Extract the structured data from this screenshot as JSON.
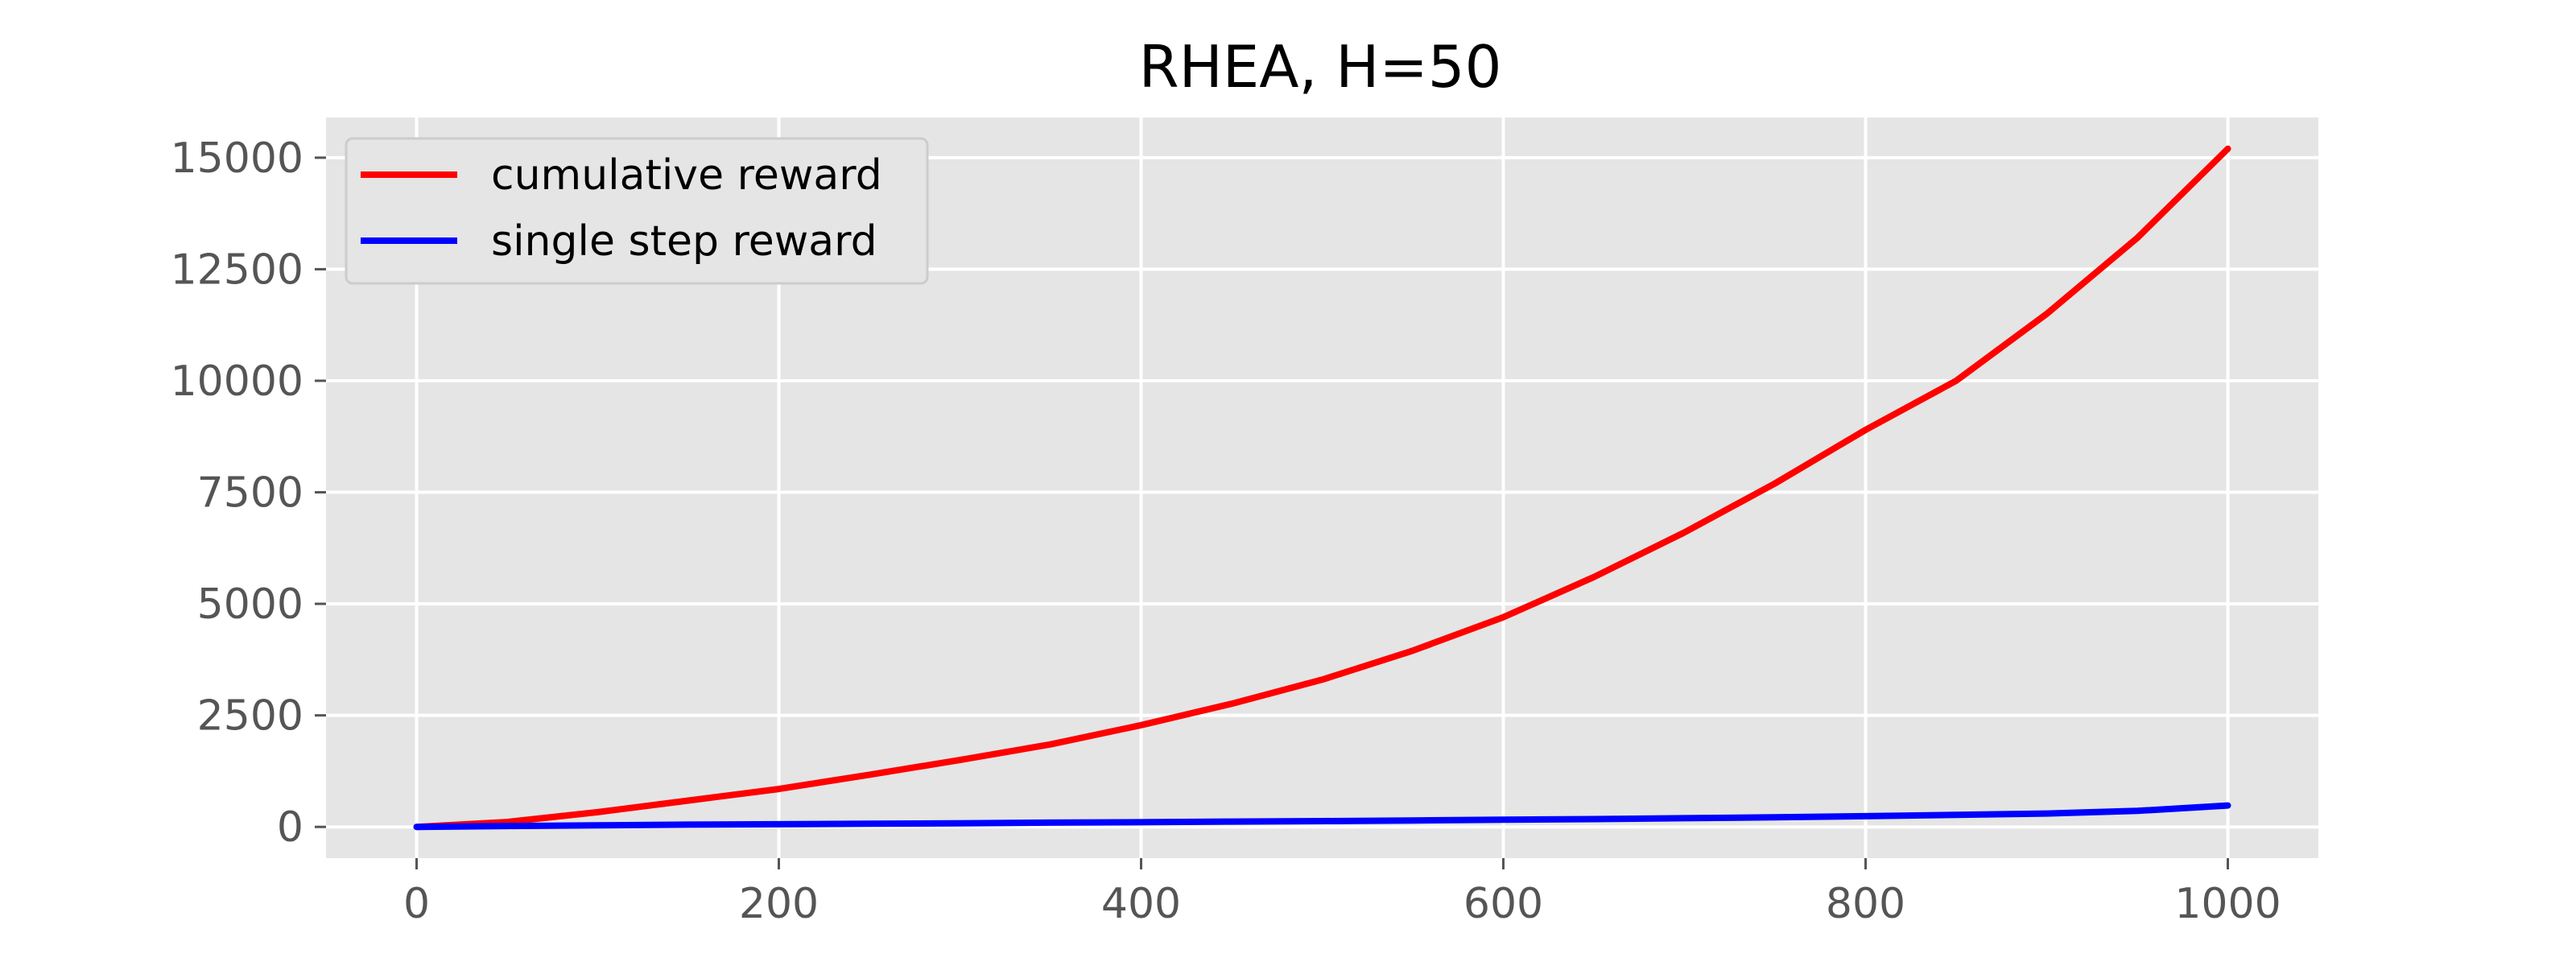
{
  "chart_data": {
    "type": "line",
    "title": "RHEA, H=50",
    "xlabel": "",
    "ylabel": "",
    "xlim": [
      -50,
      1050
    ],
    "ylim": [
      -700,
      15900
    ],
    "xticks": [
      0,
      200,
      400,
      600,
      800,
      1000
    ],
    "xtick_labels": [
      "0",
      "200",
      "400",
      "600",
      "800",
      "1000"
    ],
    "yticks": [
      0,
      2500,
      5000,
      7500,
      10000,
      12500,
      15000
    ],
    "ytick_labels": [
      "0",
      "2500",
      "5000",
      "7500",
      "10000",
      "12500",
      "15000"
    ],
    "grid": true,
    "legend_position": "top-left",
    "background_color": "#e5e5e5",
    "grid_color": "#ffffff",
    "series": [
      {
        "name": "cumulative reward",
        "color": "#ff0000",
        "x": [
          0,
          50,
          100,
          150,
          200,
          250,
          300,
          350,
          400,
          450,
          500,
          550,
          600,
          650,
          700,
          750,
          800,
          850,
          900,
          950,
          1000
        ],
        "values": [
          0,
          110,
          330,
          590,
          850,
          1170,
          1500,
          1850,
          2280,
          2760,
          3300,
          3950,
          4700,
          5600,
          6600,
          7700,
          8900,
          10000,
          11500,
          13200,
          15200
        ]
      },
      {
        "name": "single step reward",
        "color": "#0000ff",
        "x": [
          0,
          50,
          100,
          150,
          200,
          250,
          300,
          350,
          400,
          450,
          500,
          550,
          600,
          650,
          700,
          750,
          800,
          850,
          900,
          950,
          1000
        ],
        "values": [
          0,
          20,
          35,
          50,
          60,
          70,
          80,
          95,
          105,
          120,
          130,
          145,
          160,
          175,
          195,
          215,
          240,
          270,
          300,
          360,
          480
        ]
      }
    ]
  }
}
